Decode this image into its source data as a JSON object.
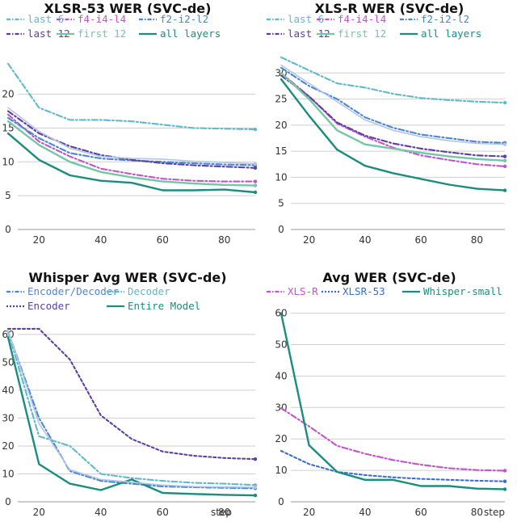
{
  "chart_data": [
    {
      "type": "line",
      "title": "XLSR-53 WER (SVC-de)",
      "xlabel": "",
      "ylabel": "",
      "xlim": [
        10,
        90
      ],
      "ylim": [
        0,
        27
      ],
      "xticks": [
        20,
        40,
        60,
        80
      ],
      "yticks": [
        0,
        5,
        10,
        15,
        20
      ],
      "x": [
        10,
        20,
        30,
        40,
        50,
        60,
        70,
        80,
        90
      ],
      "series": [
        {
          "name": "last 6",
          "color": "#5fb8cc",
          "dash": "dashdot",
          "values": [
            24.5,
            18.0,
            16.2,
            16.2,
            16.0,
            15.5,
            15.0,
            14.9,
            14.8
          ]
        },
        {
          "name": "f4-i4-l4",
          "color": "#c254c9",
          "dash": "dashdot",
          "values": [
            17.0,
            13.0,
            10.8,
            9.0,
            8.2,
            7.5,
            7.2,
            7.1,
            7.1
          ]
        },
        {
          "name": "f2-i2-l2",
          "color": "#4a86d4",
          "dash": "dashdot",
          "values": [
            16.5,
            13.5,
            11.3,
            10.5,
            10.2,
            10.0,
            9.8,
            9.6,
            9.5
          ]
        },
        {
          "name": "last 12",
          "color": "#5b3fa5",
          "dash": "dashdot",
          "values": [
            17.5,
            14.2,
            12.3,
            11.0,
            10.3,
            9.8,
            9.5,
            9.3,
            9.1
          ]
        },
        {
          "name": "first 12",
          "color": "#72c7a6",
          "dash": "solid",
          "values": [
            16.0,
            12.5,
            10.0,
            8.5,
            7.7,
            7.1,
            6.8,
            6.6,
            6.5
          ]
        },
        {
          "name": "all layers",
          "color": "#1b8c80",
          "dash": "solid",
          "values": [
            14.2,
            10.3,
            8.0,
            7.2,
            6.9,
            5.8,
            5.8,
            5.9,
            5.5
          ]
        },
        {
          "name": "",
          "color": "#b3c5e6",
          "dash": "solid",
          "values": [
            18.0,
            14.5,
            12.0,
            10.8,
            10.5,
            10.4,
            10.1,
            9.9,
            9.7
          ]
        }
      ]
    },
    {
      "type": "line",
      "title": "XLS-R WER (SVC-de)",
      "xlabel": "",
      "ylabel": "",
      "xlim": [
        10,
        90
      ],
      "ylim": [
        0,
        35
      ],
      "xticks": [
        20,
        40,
        60,
        80
      ],
      "yticks": [
        0,
        5,
        10,
        15,
        20,
        25,
        30
      ],
      "x": [
        10,
        20,
        30,
        40,
        50,
        60,
        70,
        80,
        90
      ],
      "series": [
        {
          "name": "last 6",
          "color": "#5fb8cc",
          "dash": "dashdot",
          "values": [
            33.0,
            30.5,
            28.0,
            27.2,
            26.0,
            25.2,
            24.8,
            24.5,
            24.3
          ]
        },
        {
          "name": "f4-i4-l4",
          "color": "#c254c9",
          "dash": "dashdot",
          "values": [
            30.0,
            25.5,
            20.3,
            17.8,
            15.7,
            14.2,
            13.3,
            12.5,
            12.1
          ]
        },
        {
          "name": "f2-i2-l2",
          "color": "#4a86d4",
          "dash": "dashdot",
          "values": [
            31.0,
            27.5,
            25.0,
            21.5,
            19.5,
            18.2,
            17.5,
            16.8,
            16.6
          ]
        },
        {
          "name": "last 12",
          "color": "#5b3fa5",
          "dash": "dashdot",
          "values": [
            29.5,
            25.5,
            20.5,
            18.0,
            16.5,
            15.5,
            14.8,
            14.2,
            14.0
          ]
        },
        {
          "name": "first 12",
          "color": "#72c7a6",
          "dash": "solid",
          "values": [
            30.0,
            25.0,
            19.0,
            16.3,
            15.5,
            14.7,
            14.0,
            13.5,
            13.2
          ]
        },
        {
          "name": "all layers",
          "color": "#1b8c80",
          "dash": "solid",
          "values": [
            28.8,
            21.8,
            15.3,
            12.2,
            10.8,
            9.7,
            8.6,
            7.8,
            7.5
          ]
        },
        {
          "name": "",
          "color": "#b3c5e6",
          "dash": "solid",
          "values": [
            31.5,
            28.0,
            24.5,
            21.0,
            19.0,
            17.8,
            17.0,
            16.5,
            16.3
          ]
        }
      ]
    },
    {
      "type": "line",
      "title": "Whisper Avg WER (SVC-de)",
      "xlabel": "step",
      "ylabel": "",
      "xlim": [
        10,
        90
      ],
      "ylim": [
        0,
        64
      ],
      "xticks": [
        20,
        40,
        60,
        80
      ],
      "yticks": [
        0,
        10,
        20,
        30,
        40,
        50,
        60
      ],
      "x": [
        10,
        20,
        30,
        40,
        50,
        60,
        70,
        80,
        90
      ],
      "series": [
        {
          "name": "Encoder/Decoder",
          "color": "#4a86d4",
          "dash": "dashdot",
          "values": [
            61.0,
            30.0,
            11.0,
            7.5,
            6.5,
            5.5,
            5.2,
            5.0,
            4.8
          ]
        },
        {
          "name": "Decoder",
          "color": "#5fb8cc",
          "dash": "dashdot",
          "values": [
            61.0,
            23.5,
            20.0,
            10.0,
            8.5,
            7.5,
            6.8,
            6.5,
            6.0
          ]
        },
        {
          "name": "Encoder",
          "color": "#5b3fa5",
          "dash": "dotted",
          "values": [
            62.0,
            62.0,
            51.0,
            31.0,
            22.5,
            18.0,
            16.5,
            15.7,
            15.3
          ]
        },
        {
          "name": "Entire Model",
          "color": "#1b8c80",
          "dash": "solid",
          "values": [
            59.0,
            13.5,
            6.5,
            4.2,
            8.0,
            3.2,
            2.8,
            2.5,
            2.3
          ]
        },
        {
          "name": "",
          "color": "#b3c5e6",
          "dash": "solid",
          "values": [
            61.5,
            28.0,
            11.5,
            8.0,
            7.0,
            6.0,
            5.5,
            5.3,
            5.2
          ]
        }
      ]
    },
    {
      "type": "line",
      "title": "Avg WER (SVC-de)",
      "xlabel": "step",
      "ylabel": "",
      "xlim": [
        10,
        90
      ],
      "ylim": [
        0,
        64
      ],
      "xticks": [
        20,
        40,
        60,
        80
      ],
      "yticks": [
        0,
        10,
        20,
        30,
        40,
        50,
        60
      ],
      "x": [
        10,
        20,
        30,
        40,
        50,
        60,
        70,
        80,
        90
      ],
      "series": [
        {
          "name": "XLS-R",
          "color": "#c254c9",
          "dash": "dashdot",
          "values": [
            29.8,
            24.0,
            17.8,
            15.3,
            13.3,
            11.8,
            10.7,
            10.1,
            9.9
          ]
        },
        {
          "name": "XLSR-53",
          "color": "#3a6fc9",
          "dash": "dotted",
          "values": [
            16.2,
            12.0,
            9.5,
            8.5,
            7.8,
            7.3,
            7.0,
            6.7,
            6.5
          ]
        },
        {
          "name": "Whisper-small",
          "color": "#1b8c80",
          "dash": "solid",
          "values": [
            60.0,
            18.0,
            9.5,
            7.0,
            7.0,
            5.0,
            5.0,
            4.2,
            4.0
          ]
        }
      ]
    }
  ]
}
